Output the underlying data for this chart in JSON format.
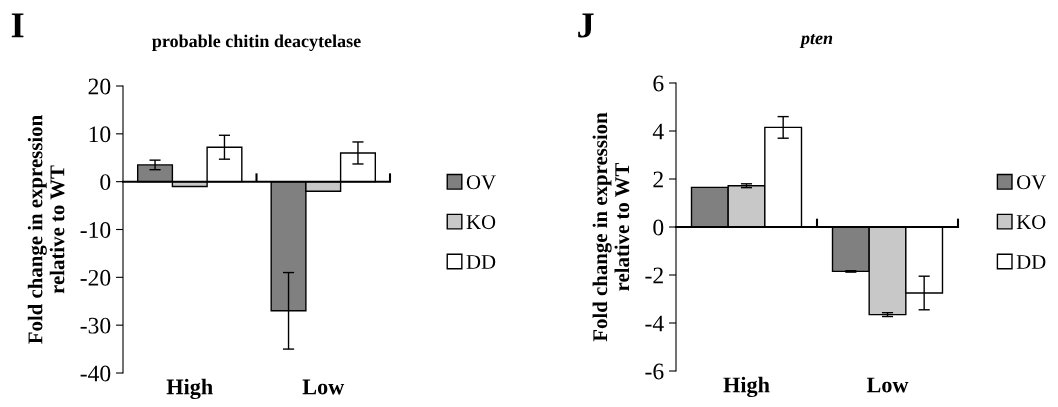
{
  "chart_data": [
    {
      "type": "bar",
      "title": "probable chitin deacytelase",
      "ylabel": "Fold change in expression\nrelative to WT",
      "annotations": [
        "I"
      ],
      "categories": [
        "High",
        "Low"
      ],
      "ylim": [
        -40,
        20
      ],
      "yticks": [
        -40,
        -30,
        -20,
        -10,
        0,
        10,
        20
      ],
      "legend": "right",
      "series": [
        {
          "name": "OV",
          "color": "#808080",
          "values": [
            3.5,
            -27
          ],
          "errors": [
            1,
            8
          ]
        },
        {
          "name": "KO",
          "color": "#c8c8c8",
          "values": [
            -1,
            -2
          ],
          "errors": [
            null,
            null
          ]
        },
        {
          "name": "DD",
          "color": "#ffffff",
          "values": [
            7.2,
            6
          ],
          "errors": [
            2.5,
            2.3
          ]
        }
      ]
    },
    {
      "type": "bar",
      "title": "pten",
      "ylabel": "Fold change in expression\nrelative to WT",
      "annotations": [
        "J"
      ],
      "categories": [
        "High",
        "Low"
      ],
      "ylim": [
        -6,
        6
      ],
      "yticks": [
        -6,
        -4,
        -2,
        0,
        2,
        4,
        6
      ],
      "legend": "right",
      "series": [
        {
          "name": "OV",
          "color": "#808080",
          "values": [
            1.65,
            -1.85
          ],
          "errors": [
            null,
            0.03
          ]
        },
        {
          "name": "KO",
          "color": "#c8c8c8",
          "values": [
            1.72,
            -3.65
          ],
          "errors": [
            0.08,
            0.08
          ]
        },
        {
          "name": "DD",
          "color": "#ffffff",
          "values": [
            4.15,
            -2.75
          ],
          "errors": [
            0.45,
            0.7
          ]
        }
      ]
    }
  ]
}
